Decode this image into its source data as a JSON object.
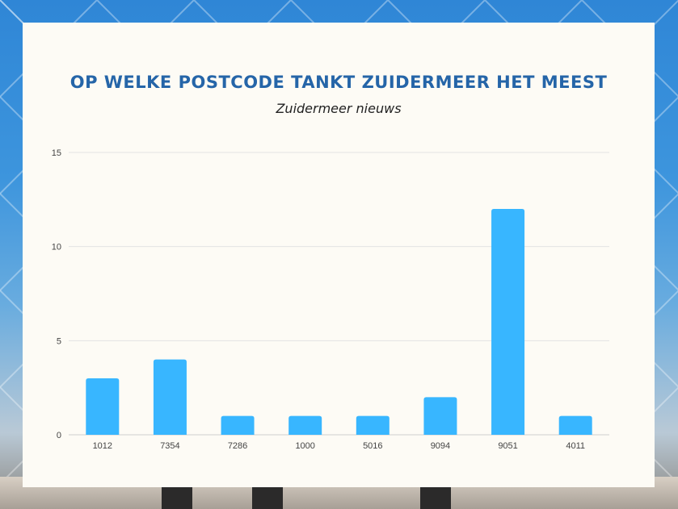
{
  "colors": {
    "bar": "#38b6ff",
    "title": "#2565a8",
    "grid": "#e3e3e3"
  },
  "header": {
    "title": "OP WELKE POSTCODE TANKT ZUIDERMEER HET MEEST",
    "subtitle": "Zuidermeer nieuws"
  },
  "chart_data": {
    "type": "bar",
    "title": "OP WELKE POSTCODE TANKT ZUIDERMEER HET MEEST",
    "subtitle": "Zuidermeer nieuws",
    "categories": [
      "1012",
      "7354",
      "7286",
      "1000",
      "5016",
      "9094",
      "9051",
      "4011"
    ],
    "values": [
      3,
      4,
      1,
      1,
      1,
      2,
      12,
      1
    ],
    "xlabel": "",
    "ylabel": "",
    "ylim": [
      0,
      15
    ],
    "yticks": [
      0,
      5,
      10,
      15
    ],
    "grid": true,
    "legend": "none"
  }
}
